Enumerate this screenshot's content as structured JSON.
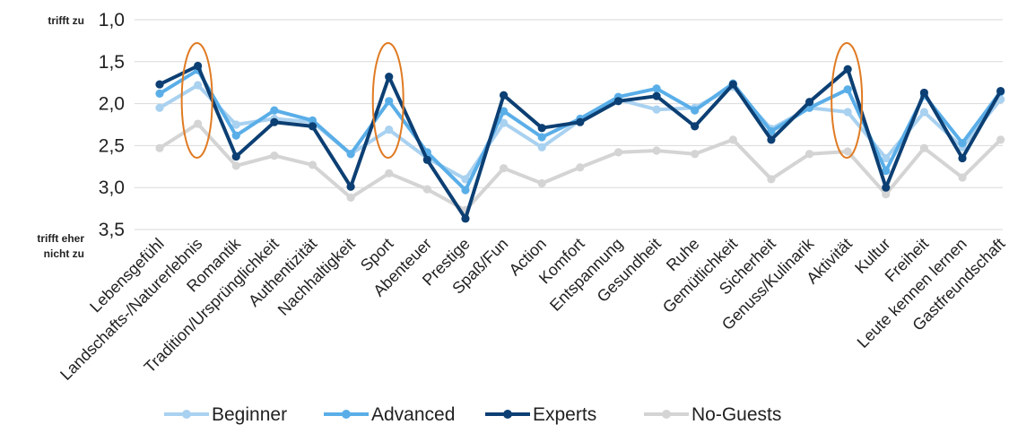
{
  "chart_data": {
    "type": "line",
    "y_axis": {
      "top_label": "trifft zu",
      "bottom_label_line1": "trifft eher",
      "bottom_label_line2": "nicht zu",
      "ticks": [
        "1,0",
        "1,5",
        "2,0",
        "2,5",
        "3,0",
        "3,5"
      ],
      "tick_values": [
        1.0,
        1.5,
        2.0,
        2.5,
        3.0,
        3.5
      ],
      "ylim": [
        1.0,
        3.5
      ],
      "inverted": true
    },
    "grid": true,
    "categories": [
      "Lebensgefühl",
      "Landschafts-/Naturerlebnis",
      "Romantik",
      "Tradition/Ursprünglichkeit",
      "Authentizität",
      "Nachhaltigkeit",
      "Sport",
      "Abenteuer",
      "Prestige",
      "Spaß/Fun",
      "Action",
      "Komfort",
      "Entspannung",
      "Gesundheit",
      "Ruhe",
      "Gemütlichkeit",
      "Sicherheit",
      "Genuss/Kulinarik",
      "Aktivität",
      "Kultur",
      "Freiheit",
      "Leute kennen lernen",
      "Gastfreundschaft"
    ],
    "series": [
      {
        "name": "No-Guests",
        "color": "#d4d4d4",
        "values": [
          2.53,
          2.24,
          2.74,
          2.62,
          2.73,
          3.12,
          2.83,
          3.02,
          3.27,
          2.77,
          2.95,
          2.76,
          2.58,
          2.56,
          2.6,
          2.43,
          2.9,
          2.6,
          2.57,
          3.08,
          2.53,
          2.88,
          2.43
        ]
      },
      {
        "name": "Beginner",
        "color": "#a9d1f0",
        "values": [
          2.05,
          1.78,
          2.25,
          2.18,
          2.22,
          2.6,
          2.31,
          2.65,
          2.9,
          2.23,
          2.52,
          2.2,
          1.95,
          2.07,
          2.05,
          1.8,
          2.3,
          2.05,
          2.1,
          2.65,
          2.1,
          2.52,
          1.95
        ]
      },
      {
        "name": "Advanced",
        "color": "#5aaee8",
        "values": [
          1.88,
          1.6,
          2.38,
          2.08,
          2.2,
          2.6,
          1.97,
          2.58,
          3.03,
          2.09,
          2.4,
          2.18,
          1.92,
          1.82,
          2.08,
          1.76,
          2.33,
          2.05,
          1.83,
          2.8,
          1.9,
          2.47,
          1.86
        ]
      },
      {
        "name": "Experts",
        "color": "#0c3f73",
        "values": [
          1.77,
          1.55,
          2.63,
          2.22,
          2.27,
          2.99,
          1.68,
          2.67,
          3.37,
          1.9,
          2.29,
          2.22,
          1.97,
          1.91,
          2.27,
          1.77,
          2.43,
          1.98,
          1.59,
          3.0,
          1.87,
          2.65,
          1.85
        ]
      }
    ],
    "legend_order": [
      "Beginner",
      "Advanced",
      "Experts",
      "No-Guests"
    ],
    "legend_position": "bottom",
    "highlights": {
      "color": "#e07b23",
      "categories": [
        "Landschafts-/Naturerlebnis",
        "Sport",
        "Aktivität"
      ]
    }
  }
}
